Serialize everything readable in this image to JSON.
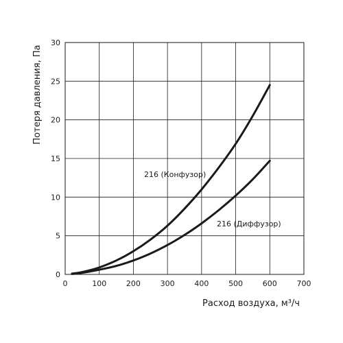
{
  "chart_data": {
    "type": "line",
    "xlabel": "Расход воздуха, м³/ч",
    "ylabel": "Потеря давления, Па",
    "xlim": [
      0,
      700
    ],
    "ylim": [
      0,
      30
    ],
    "xticks": [
      0,
      100,
      200,
      300,
      400,
      500,
      600,
      700
    ],
    "yticks": [
      0,
      5,
      10,
      15,
      20,
      25,
      30
    ],
    "grid": true,
    "series": [
      {
        "name": "216 (Конфузор)",
        "x": [
          20,
          50,
          100,
          150,
          200,
          250,
          300,
          350,
          400,
          450,
          500,
          550,
          600
        ],
        "y": [
          0.1,
          0.3,
          0.9,
          1.8,
          3.0,
          4.5,
          6.3,
          8.5,
          11.0,
          13.8,
          16.9,
          20.5,
          24.5
        ]
      },
      {
        "name": "216 (Диффузор)",
        "x": [
          20,
          50,
          100,
          150,
          200,
          250,
          300,
          350,
          400,
          450,
          500,
          550,
          600
        ],
        "y": [
          0.05,
          0.2,
          0.6,
          1.1,
          1.8,
          2.7,
          3.8,
          5.1,
          6.6,
          8.3,
          10.2,
          12.3,
          14.7
        ]
      }
    ]
  }
}
